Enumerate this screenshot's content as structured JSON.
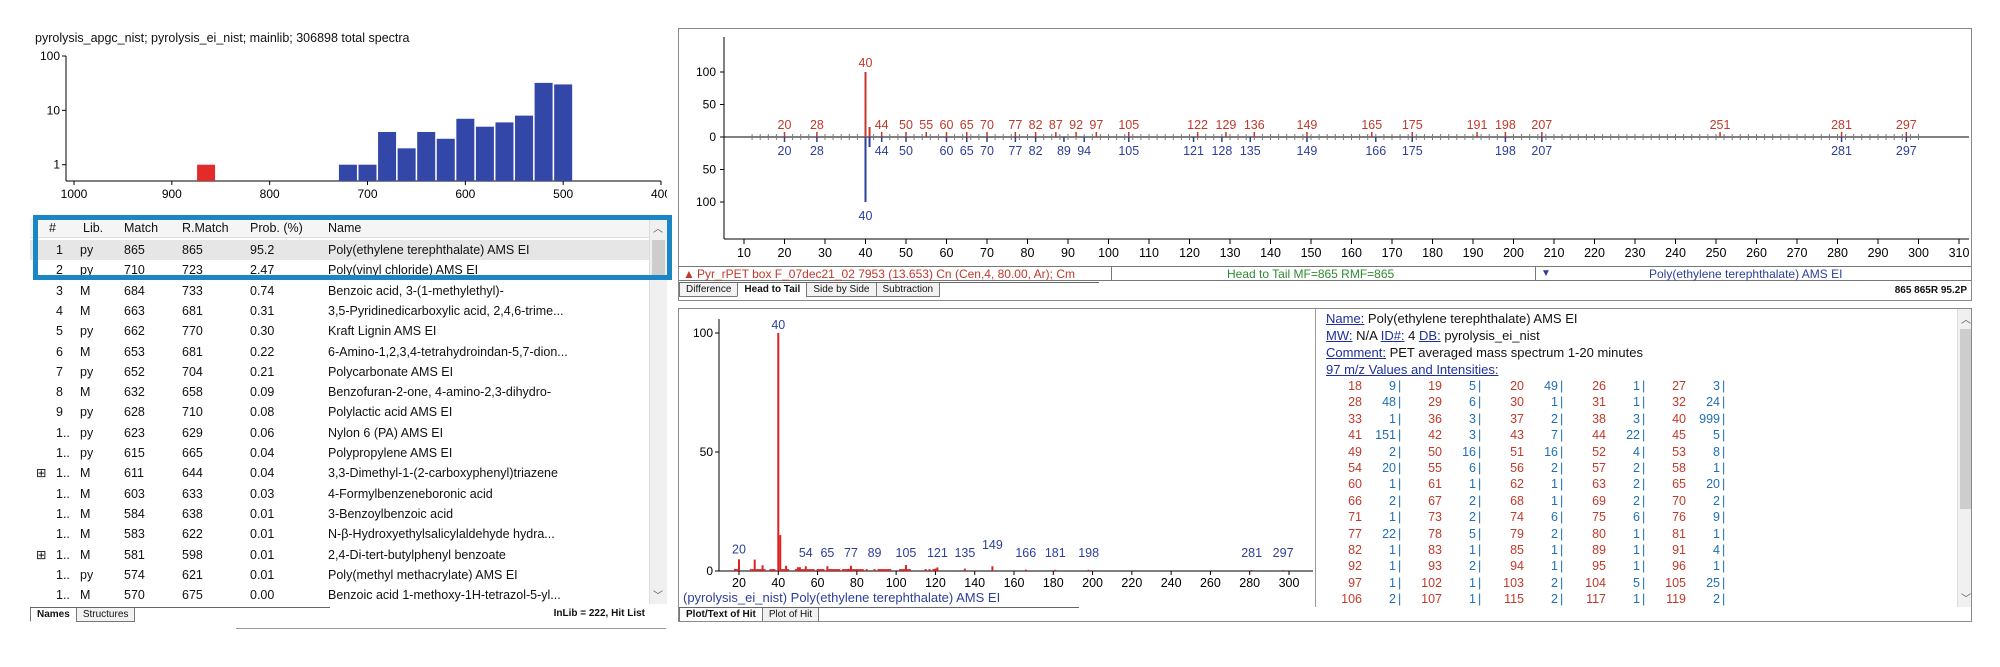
{
  "histogram": {
    "title": "pyrolysis_apgc_nist; pyrolysis_ei_nist; mainlib;  306898 total spectra",
    "y_ticks": [
      "100",
      "10",
      "1"
    ],
    "x_ticks": [
      "1000",
      "900",
      "800",
      "700",
      "600",
      "500",
      "400"
    ],
    "bars": [
      {
        "score": 865,
        "count": 1,
        "color": "#e32b2b"
      },
      {
        "score": 720,
        "count": 1,
        "color": "#3247a8"
      },
      {
        "score": 700,
        "count": 1,
        "color": "#3247a8"
      },
      {
        "score": 680,
        "count": 4,
        "color": "#3247a8"
      },
      {
        "score": 660,
        "count": 2,
        "color": "#3247a8"
      },
      {
        "score": 640,
        "count": 4,
        "color": "#3247a8"
      },
      {
        "score": 620,
        "count": 3,
        "color": "#3247a8"
      },
      {
        "score": 600,
        "count": 7,
        "color": "#3247a8"
      },
      {
        "score": 580,
        "count": 5,
        "color": "#3247a8"
      },
      {
        "score": 560,
        "count": 6,
        "color": "#3247a8"
      },
      {
        "score": 540,
        "count": 8,
        "color": "#3247a8"
      },
      {
        "score": 520,
        "count": 32,
        "color": "#3247a8"
      },
      {
        "score": 500,
        "count": 30,
        "color": "#3247a8"
      }
    ]
  },
  "hitlist": {
    "headers": {
      "num": "#",
      "lib": "Lib.",
      "match": "Match",
      "rmatch": "R.Match",
      "prob": "Prob. (%)",
      "name": "Name"
    },
    "rows": [
      {
        "num": "1",
        "lib": "py",
        "match": "865",
        "rmatch": "865",
        "prob": "95.2",
        "name": "Poly(ethylene terephthalate) AMS EI"
      },
      {
        "num": "2",
        "lib": "py",
        "match": "710",
        "rmatch": "723",
        "prob": "2.47",
        "name": "Poly(vinyl chloride) AMS EI"
      },
      {
        "num": "3",
        "lib": "M",
        "match": "684",
        "rmatch": "733",
        "prob": "0.74",
        "name": "Benzoic acid, 3-(1-methylethyl)-"
      },
      {
        "num": "4",
        "lib": "M",
        "match": "663",
        "rmatch": "681",
        "prob": "0.31",
        "name": "3,5-Pyridinedicarboxylic acid, 2,4,6-trime..."
      },
      {
        "num": "5",
        "lib": "py",
        "match": "662",
        "rmatch": "770",
        "prob": "0.30",
        "name": "Kraft Lignin AMS EI"
      },
      {
        "num": "6",
        "lib": "M",
        "match": "653",
        "rmatch": "681",
        "prob": "0.22",
        "name": "6-Amino-1,2,3,4-tetrahydroindan-5,7-dion..."
      },
      {
        "num": "7",
        "lib": "py",
        "match": "652",
        "rmatch": "704",
        "prob": "0.21",
        "name": "Polycarbonate AMS EI"
      },
      {
        "num": "8",
        "lib": "M",
        "match": "632",
        "rmatch": "658",
        "prob": "0.09",
        "name": "Benzofuran-2-one, 4-amino-2,3-dihydro-"
      },
      {
        "num": "9",
        "lib": "py",
        "match": "628",
        "rmatch": "710",
        "prob": "0.08",
        "name": "Polylactic acid AMS EI"
      },
      {
        "num": "1..",
        "lib": "py",
        "match": "623",
        "rmatch": "629",
        "prob": "0.06",
        "name": "Nylon 6 (PA) AMS EI"
      },
      {
        "num": "1..",
        "lib": "py",
        "match": "615",
        "rmatch": "665",
        "prob": "0.04",
        "name": "Polypropylene AMS EI"
      },
      {
        "num": "1..",
        "lib": "M",
        "match": "611",
        "rmatch": "644",
        "prob": "0.04",
        "name": "3,3-Dimethyl-1-(2-carboxyphenyl)triazene",
        "expand": "⊞"
      },
      {
        "num": "1..",
        "lib": "M",
        "match": "603",
        "rmatch": "633",
        "prob": "0.03",
        "name": "4-Formylbenzeneboronic acid"
      },
      {
        "num": "1..",
        "lib": "M",
        "match": "584",
        "rmatch": "638",
        "prob": "0.01",
        "name": "3-Benzoylbenzoic acid"
      },
      {
        "num": "1..",
        "lib": "M",
        "match": "583",
        "rmatch": "622",
        "prob": "0.01",
        "name": "N-β-Hydroxyethylsalicylaldehyde hydra..."
      },
      {
        "num": "1..",
        "lib": "M",
        "match": "581",
        "rmatch": "598",
        "prob": "0.01",
        "name": "2,4-Di-tert-butylphenyl benzoate",
        "expand": "⊞"
      },
      {
        "num": "1..",
        "lib": "py",
        "match": "574",
        "rmatch": "621",
        "prob": "0.01",
        "name": "Poly(methyl methacrylate) AMS EI"
      },
      {
        "num": "1..",
        "lib": "M",
        "match": "570",
        "rmatch": "675",
        "prob": "0.00",
        "name": "Benzoic acid 1-methoxy-1H-tetrazol-5-yl..."
      }
    ],
    "tabs": [
      "Names",
      "Structures"
    ],
    "status": "InLib = 222, Hit List"
  },
  "head_to_tail": {
    "y_ticks": [
      "100",
      "50",
      "0",
      "50",
      "100"
    ],
    "x_ticks": [
      "10",
      "20",
      "30",
      "40",
      "50",
      "60",
      "70",
      "80",
      "90",
      "100",
      "110",
      "120",
      "130",
      "140",
      "150",
      "160",
      "170",
      "180",
      "190",
      "200",
      "210",
      "220",
      "230",
      "240",
      "250",
      "260",
      "270",
      "280",
      "290",
      "300",
      "310"
    ],
    "upper_labels": [
      20,
      28,
      40,
      44,
      50,
      55,
      60,
      65,
      70,
      77,
      82,
      87,
      92,
      97,
      105,
      122,
      129,
      136,
      149,
      165,
      175,
      191,
      198,
      207,
      251,
      281,
      297
    ],
    "lower_labels": [
      20,
      28,
      40,
      44,
      50,
      60,
      65,
      70,
      77,
      82,
      89,
      94,
      105,
      121,
      128,
      135,
      149,
      166,
      175,
      198,
      207,
      281,
      297
    ],
    "base_peak": 40,
    "footer_left": "Pyr_rPET box F_07dec21_02  7953 (13.653) Cn (Cen,4, 80.00, Ar); Cm",
    "footer_mid": "Head to Tail MF=865 RMF=865",
    "footer_right": "Poly(ethylene terephthalate) AMS EI",
    "tabs": [
      "Difference",
      "Head to Tail",
      "Side by Side",
      "Subtraction"
    ],
    "status": "865 865R 95.2P"
  },
  "plot_of_hit": {
    "y_ticks": [
      "100",
      "50",
      "0"
    ],
    "x_ticks": [
      "20",
      "40",
      "60",
      "80",
      "100",
      "120",
      "140",
      "160",
      "180",
      "200",
      "220",
      "240",
      "260",
      "280",
      "300"
    ],
    "peak_labels": [
      20,
      40,
      54,
      65,
      77,
      89,
      105,
      121,
      135,
      149,
      166,
      181,
      198,
      281,
      297
    ],
    "caption": "(pyrolysis_ei_nist) Poly(ethylene terephthalate) AMS EI",
    "tabs": [
      "Plot/Text of Hit",
      "Plot of Hit"
    ]
  },
  "details": {
    "name_label": "Name:",
    "name_value": "Poly(ethylene terephthalate) AMS EI",
    "mw_label": "MW:",
    "mw_value": "N/A",
    "id_label": "ID#:",
    "id_value": "4",
    "db_label": "DB:",
    "db_value": "pyrolysis_ei_nist",
    "comment_label": "Comment:",
    "comment_value": "PET averaged mass spectrum 1-20 minutes",
    "values_header": "97 m/z Values and Intensities:",
    "rows": [
      [
        [
          18,
          9
        ],
        [
          19,
          5
        ],
        [
          20,
          49
        ],
        [
          26,
          1
        ],
        [
          27,
          3
        ]
      ],
      [
        [
          28,
          48
        ],
        [
          29,
          6
        ],
        [
          30,
          1
        ],
        [
          31,
          1
        ],
        [
          32,
          24
        ]
      ],
      [
        [
          33,
          1
        ],
        [
          36,
          3
        ],
        [
          37,
          2
        ],
        [
          38,
          3
        ],
        [
          40,
          999
        ]
      ],
      [
        [
          41,
          151
        ],
        [
          42,
          3
        ],
        [
          43,
          7
        ],
        [
          44,
          22
        ],
        [
          45,
          5
        ]
      ],
      [
        [
          49,
          2
        ],
        [
          50,
          16
        ],
        [
          51,
          16
        ],
        [
          52,
          4
        ],
        [
          53,
          8
        ]
      ],
      [
        [
          54,
          20
        ],
        [
          55,
          6
        ],
        [
          56,
          2
        ],
        [
          57,
          2
        ],
        [
          58,
          1
        ]
      ],
      [
        [
          60,
          1
        ],
        [
          61,
          1
        ],
        [
          62,
          1
        ],
        [
          63,
          2
        ],
        [
          65,
          20
        ]
      ],
      [
        [
          66,
          2
        ],
        [
          67,
          2
        ],
        [
          68,
          1
        ],
        [
          69,
          2
        ],
        [
          70,
          2
        ]
      ],
      [
        [
          71,
          1
        ],
        [
          73,
          2
        ],
        [
          74,
          6
        ],
        [
          75,
          6
        ],
        [
          76,
          9
        ]
      ],
      [
        [
          77,
          22
        ],
        [
          78,
          5
        ],
        [
          79,
          2
        ],
        [
          80,
          1
        ],
        [
          81,
          1
        ]
      ],
      [
        [
          82,
          1
        ],
        [
          83,
          1
        ],
        [
          85,
          1
        ],
        [
          89,
          1
        ],
        [
          91,
          4
        ]
      ],
      [
        [
          92,
          1
        ],
        [
          93,
          2
        ],
        [
          94,
          1
        ],
        [
          95,
          1
        ],
        [
          96,
          1
        ]
      ],
      [
        [
          97,
          1
        ],
        [
          102,
          1
        ],
        [
          103,
          2
        ],
        [
          104,
          5
        ],
        [
          105,
          25
        ]
      ],
      [
        [
          106,
          2
        ],
        [
          107,
          1
        ],
        [
          115,
          2
        ],
        [
          117,
          1
        ],
        [
          119,
          2
        ]
      ]
    ]
  },
  "colors": {
    "red": "#c0392b",
    "blue": "#2d3f9a",
    "selection_box": "#1a86c4",
    "green": "#2e8b2e"
  }
}
